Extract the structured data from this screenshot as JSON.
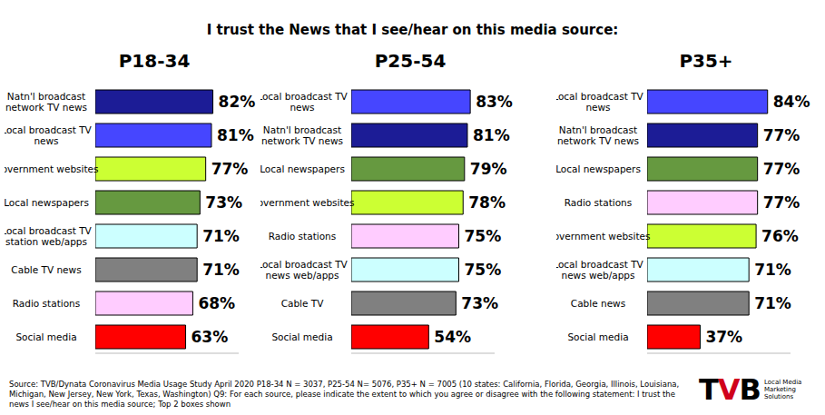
{
  "title": "I trust the News that I see/hear on this media source:",
  "source": "Source: TVB/Dynata  Coronavirus Media Usage Study April 2020 P18-34 N = 3037, P25-54 N= 5076, P35+ N = 7005 (10 states: California, Florida, Georgia, Illinois, Louisiana, Michigan, New Jersey, New York, Texas, Washington) Q9: For each source, please indicate the extent to which you agree or disagree with the following statement: I trust the news I see/hear on this media source; Top 2 boxes shown",
  "logo": {
    "text": "TVB",
    "tagline": "Local Media Marketing Solutions"
  },
  "chart_data": [
    {
      "type": "bar",
      "title": "P18-34",
      "orientation": "horizontal",
      "categories": [
        "Natn'l broadcast network TV news",
        "Local broadcast TV news",
        "Government websites",
        "Local newspapers",
        "Local broadcast TV station web/apps",
        "Cable TV news",
        "Radio stations",
        "Social media"
      ],
      "values": [
        82,
        81,
        77,
        73,
        71,
        71,
        68,
        63
      ],
      "value_labels": [
        "82%",
        "81%",
        "77%",
        "73%",
        "71%",
        "71%",
        "68%",
        "63%"
      ],
      "colors": [
        "#1c1c96",
        "#4646ff",
        "#ccff33",
        "#669940",
        "#ccffff",
        "#808080",
        "#ffccff",
        "#ff0000"
      ],
      "xlim": [
        0,
        100
      ],
      "data_labels": true,
      "tick_labels": "y"
    },
    {
      "type": "bar",
      "title": "P25-54",
      "orientation": "horizontal",
      "categories": [
        "Local broadcast TV news",
        "Natn'l broadcast network TV news",
        "Local newspapers",
        "Government websites",
        "Radio stations",
        "Local broadcast TV news web/apps",
        "Cable TV",
        "Social media"
      ],
      "values": [
        83,
        81,
        79,
        78,
        75,
        75,
        73,
        54
      ],
      "value_labels": [
        "83%",
        "81%",
        "79%",
        "78%",
        "75%",
        "75%",
        "73%",
        "54%"
      ],
      "colors": [
        "#4646ff",
        "#1c1c96",
        "#669940",
        "#ccff33",
        "#ffccff",
        "#ccffff",
        "#808080",
        "#ff0000"
      ],
      "xlim": [
        0,
        100
      ],
      "data_labels": true,
      "tick_labels": "y"
    },
    {
      "type": "bar",
      "title": "P35+",
      "orientation": "horizontal",
      "categories": [
        "Local broadcast TV news",
        "Natn'l broadcast network TV news",
        "Local newspapers",
        "Radio stations",
        "Government websites",
        "Local broadcast TV news web/apps",
        "Cable news",
        "Social media"
      ],
      "values": [
        84,
        77,
        77,
        77,
        76,
        71,
        71,
        37
      ],
      "value_labels": [
        "84%",
        "77%",
        "77%",
        "77%",
        "76%",
        "71%",
        "71%",
        "37%"
      ],
      "colors": [
        "#4646ff",
        "#1c1c96",
        "#669940",
        "#ffccff",
        "#ccff33",
        "#ccffff",
        "#808080",
        "#ff0000"
      ],
      "xlim": [
        0,
        100
      ],
      "data_labels": true,
      "tick_labels": "y"
    }
  ]
}
